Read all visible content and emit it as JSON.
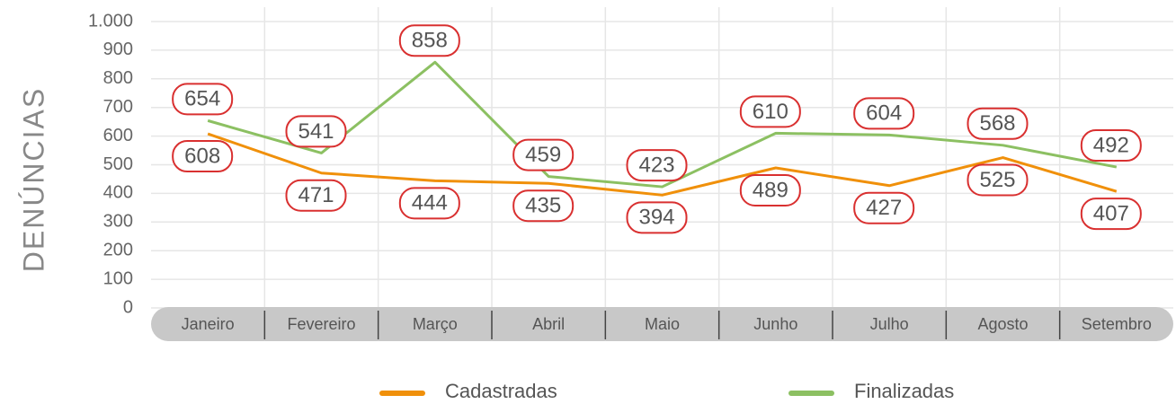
{
  "chart_data": {
    "type": "line",
    "y_label": "DENÚNCIAS",
    "categories": [
      "Janeiro",
      "Fevereiro",
      "Março",
      "Abril",
      "Maio",
      "Junho",
      "Julho",
      "Agosto",
      "Setembro"
    ],
    "series": [
      {
        "name": "Cadastradas",
        "color": "#f0900a",
        "values": [
          608,
          471,
          444,
          435,
          394,
          489,
          427,
          525,
          407
        ]
      },
      {
        "name": "Finalizadas",
        "color": "#8cc062",
        "values": [
          654,
          541,
          858,
          459,
          423,
          610,
          604,
          568,
          492
        ]
      }
    ],
    "ylim": [
      0,
      1000
    ],
    "yticks": [
      0,
      100,
      200,
      300,
      400,
      500,
      600,
      700,
      800,
      900,
      {
        "value": 1000,
        "label": "1.000"
      }
    ],
    "grid": true,
    "legend": "bottom"
  }
}
